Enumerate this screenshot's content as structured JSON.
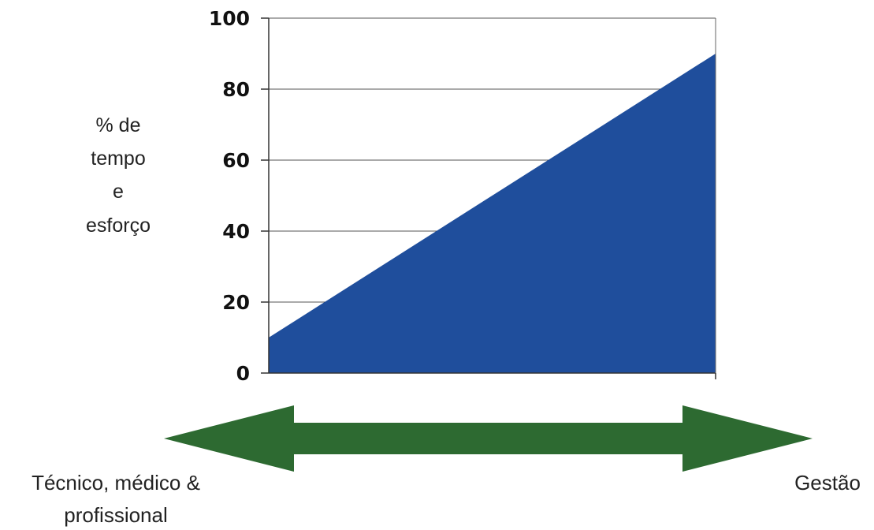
{
  "chart_data": {
    "type": "area",
    "x": [
      0,
      1
    ],
    "values": [
      10,
      90
    ],
    "yticks": [
      0,
      20,
      40,
      60,
      80,
      100
    ],
    "ylim": [
      0,
      100
    ],
    "grid": true,
    "ylabel_lines": [
      "% de",
      "tempo",
      "e",
      "esforço"
    ],
    "fill_color": "#1f4e9c",
    "arrow": {
      "color": "#2d6a31",
      "left_label_lines": [
        "Técnico, médico &",
        "profissional"
      ],
      "right_label": "Gestão"
    }
  }
}
